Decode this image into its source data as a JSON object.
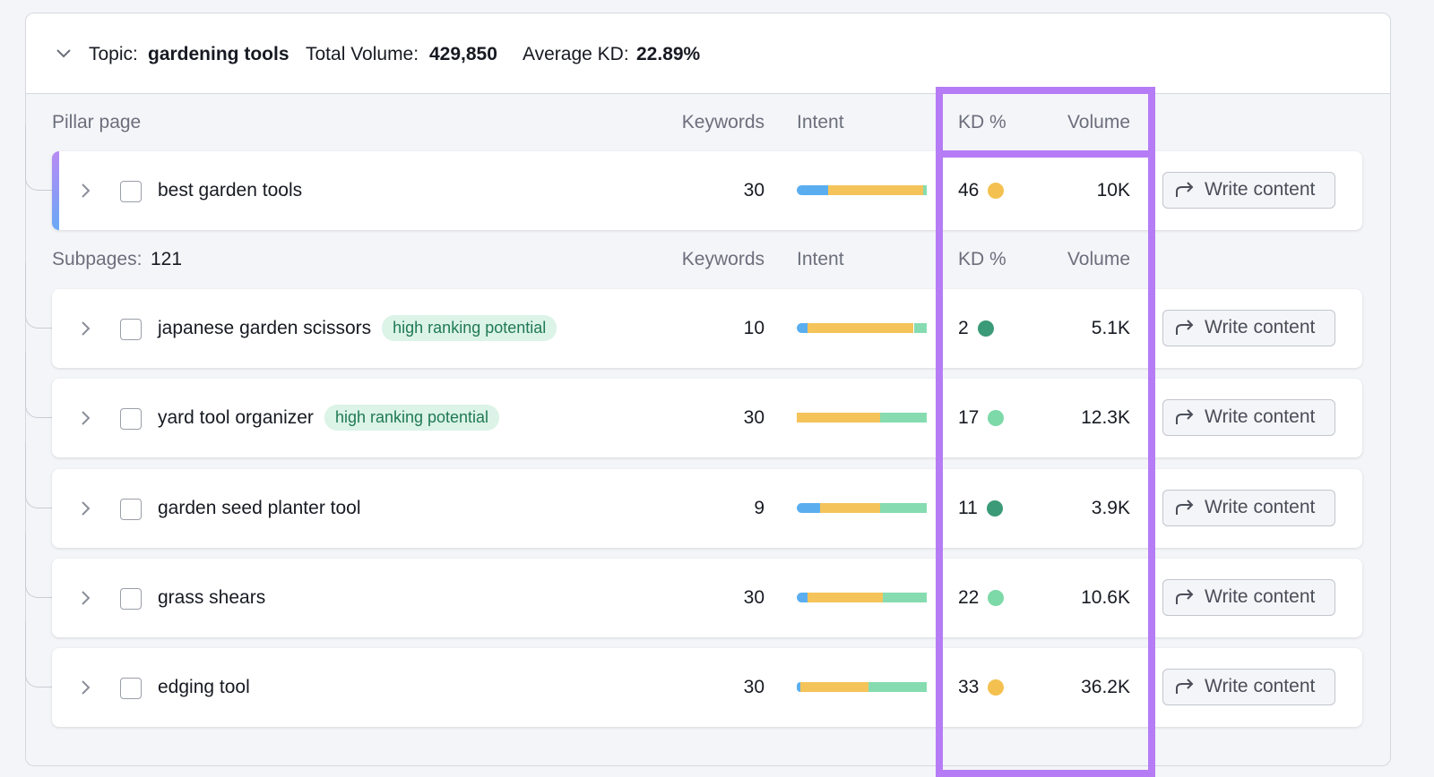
{
  "header": {
    "topic_label": "Topic:",
    "topic": "gardening tools",
    "volume_label": "Total Volume:",
    "volume": "429,850",
    "kd_label": "Average KD:",
    "kd": "22.89%"
  },
  "columns": [
    "Keywords",
    "Intent",
    "KD %",
    "Volume"
  ],
  "write_button": "Write content",
  "intent_colors": [
    "#5aaef0",
    "#f4c45a",
    "#86dcb0"
  ],
  "pillar": {
    "section_label": "Pillar page",
    "row": {
      "keyword": "best garden tools",
      "keywords": "30",
      "intent": [
        0.24,
        0.73,
        0.03
      ],
      "kd": "46",
      "kd_color": "#f4c150",
      "volume": "10K"
    }
  },
  "subpages": {
    "section_label": "Subpages:",
    "count": "121",
    "rows": [
      {
        "keyword": "japanese garden scissors",
        "tag": "high ranking potential",
        "keywords": "10",
        "intent": [
          0.08,
          0.82,
          0.1
        ],
        "kd": "2",
        "kd_color": "#3b9a78",
        "volume": "5.1K"
      },
      {
        "keyword": "yard tool organizer",
        "tag": "high ranking potential",
        "keywords": "30",
        "intent": [
          0,
          0.64,
          0.36
        ],
        "kd": "17",
        "kd_color": "#7dd9a8",
        "volume": "12.3K"
      },
      {
        "keyword": "garden seed planter tool",
        "keywords": "9",
        "intent": [
          0.18,
          0.46,
          0.36
        ],
        "kd": "11",
        "kd_color": "#3b9a78",
        "volume": "3.9K"
      },
      {
        "keyword": "grass shears",
        "keywords": "30",
        "intent": [
          0.08,
          0.58,
          0.34
        ],
        "kd": "22",
        "kd_color": "#7dd9a8",
        "volume": "10.6K"
      },
      {
        "keyword": "edging tool",
        "keywords": "30",
        "intent": [
          0.03,
          0.52,
          0.45
        ],
        "kd": "33",
        "kd_color": "#f4c150",
        "volume": "36.2K"
      }
    ]
  }
}
